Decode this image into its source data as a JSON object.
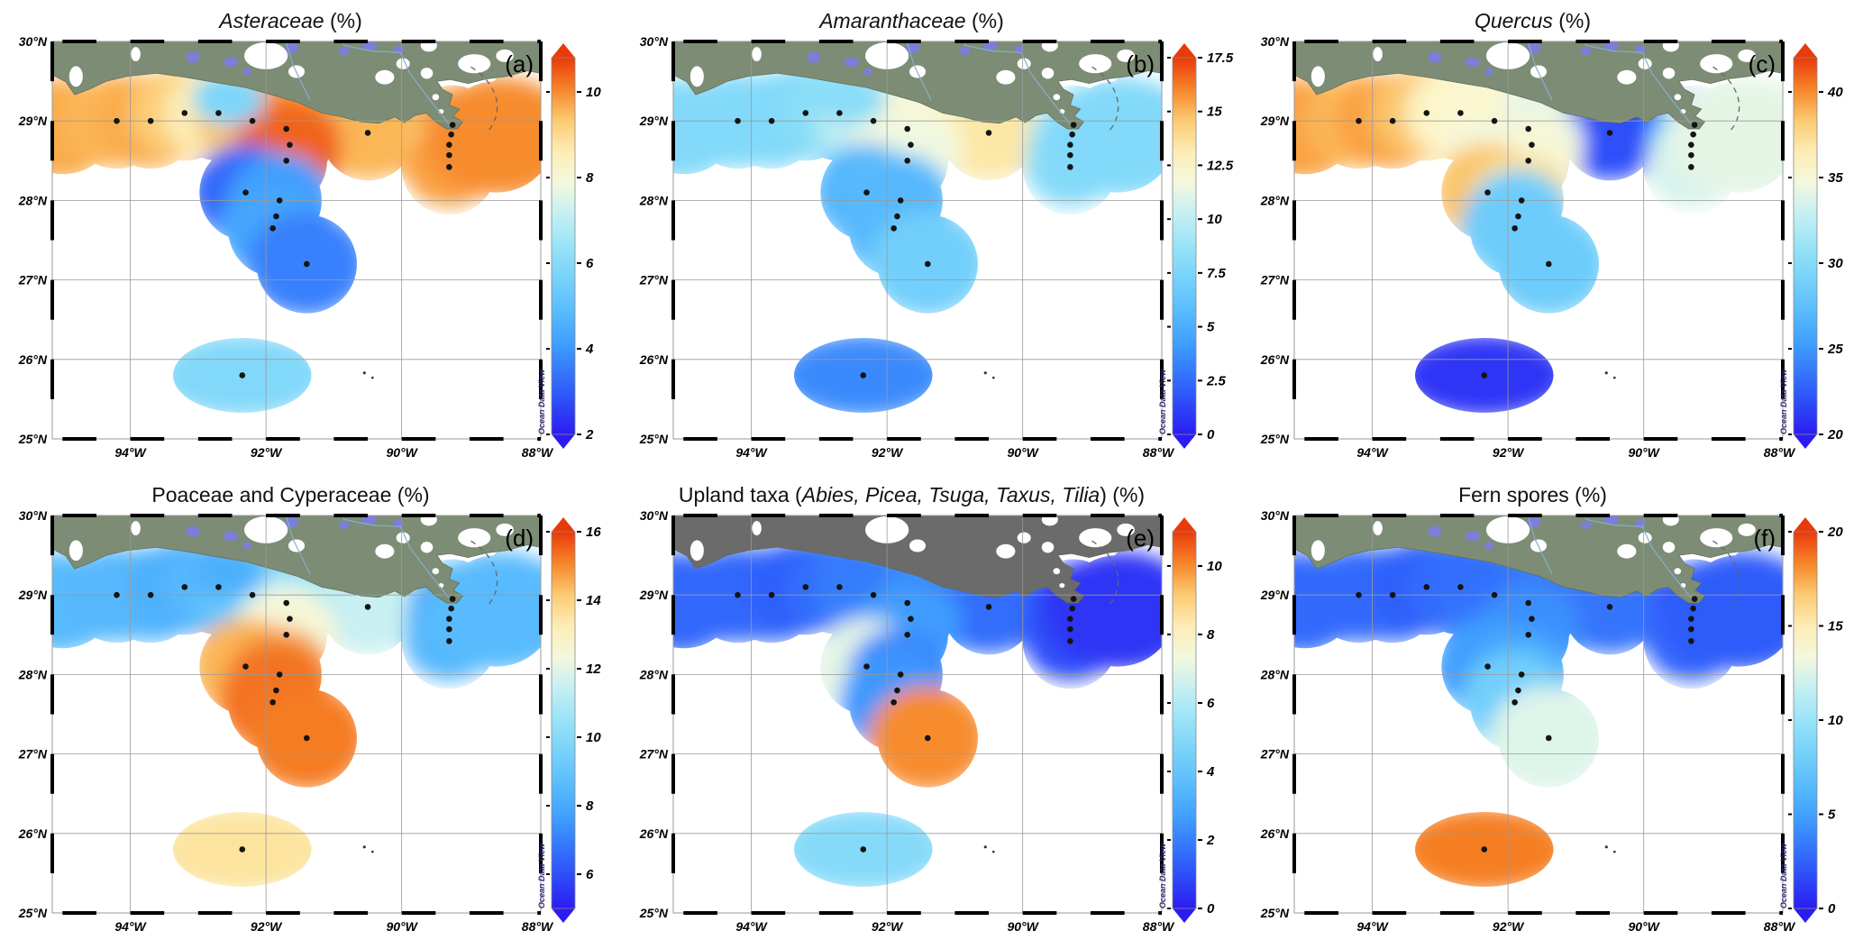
{
  "figure": {
    "watermark": "Ocean Data View",
    "background": "#ffffff"
  },
  "axes": {
    "lat_tick_labels": [
      "30°N",
      "29°N",
      "28°N",
      "27°N",
      "26°N",
      "25°N"
    ],
    "lat_tick_values": [
      30,
      29,
      28,
      27,
      26,
      25
    ],
    "lon_tick_labels": [
      "94°W",
      "92°W",
      "90°W",
      "88°W"
    ],
    "lon_tick_values": [
      -94,
      -92,
      -90,
      -88
    ],
    "lon_range": [
      -95.15,
      -87.95
    ],
    "lat_range": [
      25,
      30
    ]
  },
  "colors": {
    "land_green": "#7d8c74",
    "land_gray": "#6b6b6b",
    "lake": "#7b7fd8",
    "river": "#86aed0",
    "ocean": "#ffffff",
    "station_dot": "#141414",
    "grid": "#9a9a9a",
    "frame": "#000000",
    "colormap_stops": [
      [
        0.0,
        "#2b1cf2"
      ],
      [
        0.12,
        "#2f5ffb"
      ],
      [
        0.24,
        "#3f9ffe"
      ],
      [
        0.36,
        "#63c6fc"
      ],
      [
        0.48,
        "#8fe0f8"
      ],
      [
        0.58,
        "#c2eff4"
      ],
      [
        0.66,
        "#f2f8e0"
      ],
      [
        0.72,
        "#fdf6cb"
      ],
      [
        0.8,
        "#fcdf92"
      ],
      [
        0.86,
        "#fbb959"
      ],
      [
        0.92,
        "#f68226"
      ],
      [
        1.0,
        "#e93a0b"
      ]
    ]
  },
  "stations": [
    {
      "lon": -94.2,
      "lat": 29.0
    },
    {
      "lon": -93.7,
      "lat": 29.0
    },
    {
      "lon": -93.2,
      "lat": 29.1
    },
    {
      "lon": -92.7,
      "lat": 29.1
    },
    {
      "lon": -92.2,
      "lat": 29.0
    },
    {
      "lon": -91.7,
      "lat": 28.9
    },
    {
      "lon": -91.65,
      "lat": 28.7
    },
    {
      "lon": -91.7,
      "lat": 28.5
    },
    {
      "lon": -92.3,
      "lat": 28.1
    },
    {
      "lon": -91.8,
      "lat": 28.0
    },
    {
      "lon": -91.85,
      "lat": 27.8
    },
    {
      "lon": -91.9,
      "lat": 27.65
    },
    {
      "lon": -91.4,
      "lat": 27.2
    },
    {
      "lon": -92.35,
      "lat": 25.8
    },
    {
      "lon": -90.5,
      "lat": 28.85
    },
    {
      "lon": -89.25,
      "lat": 28.95
    },
    {
      "lon": -89.27,
      "lat": 28.83
    },
    {
      "lon": -89.3,
      "lat": 28.7
    },
    {
      "lon": -89.3,
      "lat": 28.57
    },
    {
      "lon": -89.3,
      "lat": 28.42
    }
  ],
  "support_nodes": {
    "west": {
      "lon": -95.05,
      "lat": 28.9
    },
    "dip": {
      "lon": -92.55,
      "lat": 29.28
    },
    "east": {
      "lon": -88.55,
      "lat": 28.8
    }
  },
  "panels": [
    {
      "id": "a",
      "label": "(a)",
      "land_theme": "green",
      "title_parts": [
        {
          "text": "Asteraceae",
          "italic": true
        },
        {
          "text": " (%)",
          "italic": false
        }
      ]
    },
    {
      "id": "b",
      "label": "(b)",
      "land_theme": "green",
      "title_parts": [
        {
          "text": "Amaranthaceae",
          "italic": true
        },
        {
          "text": " (%)",
          "italic": false
        }
      ]
    },
    {
      "id": "c",
      "label": "(c)",
      "land_theme": "green",
      "title_parts": [
        {
          "text": "Quercus",
          "italic": true
        },
        {
          "text": " (%)",
          "italic": false
        }
      ]
    },
    {
      "id": "d",
      "label": "(d)",
      "land_theme": "green",
      "title_parts": [
        {
          "text": "Poaceae and Cyperaceae (%)",
          "italic": false
        }
      ]
    },
    {
      "id": "e",
      "label": "(e)",
      "land_theme": "gray",
      "title_parts": [
        {
          "text": "Upland taxa (",
          "italic": false
        },
        {
          "text": "Abies, Picea, Tsuga, Taxus, Tilia",
          "italic": true
        },
        {
          "text": ") (%)",
          "italic": false
        }
      ]
    },
    {
      "id": "f",
      "label": "(f)",
      "land_theme": "green",
      "title_parts": [
        {
          "text": "Fern spores (%)",
          "italic": false
        }
      ]
    }
  ],
  "chart_data": [
    {
      "type": "heatmap",
      "panel": "(a)",
      "title": "Asteraceae (%)",
      "units": "%",
      "lon_range": [
        -95.15,
        -87.95
      ],
      "lat_range": [
        25,
        30
      ],
      "colorbar": {
        "lo": 2,
        "hi": 10.8,
        "ticks": [
          2,
          4,
          6,
          8,
          10
        ]
      },
      "values": [
        9.6,
        9.7,
        9.3,
        8.6,
        9.4,
        9.8,
        10.3,
        10.4,
        3.2,
        4.2,
        4.0,
        4.3,
        3.6,
        5.9,
        9.6,
        10.0,
        9.7,
        9.4,
        9.2,
        9.8
      ],
      "support_values": {
        "west": 9.7,
        "dip": 5.8,
        "east": 10.0
      }
    },
    {
      "type": "heatmap",
      "panel": "(b)",
      "title": "Amaranthaceae (%)",
      "units": "%",
      "lon_range": [
        -95.15,
        -87.95
      ],
      "lat_range": [
        25,
        30
      ],
      "colorbar": {
        "lo": 0,
        "hi": 17.5,
        "ticks": [
          0,
          2.5,
          5,
          7.5,
          10,
          12.5,
          15,
          17.5
        ]
      },
      "values": [
        7.8,
        7.8,
        7.8,
        8.2,
        10.2,
        11.5,
        12.3,
        11.5,
        5.5,
        6.0,
        5.2,
        5.6,
        7.0,
        3.5,
        13.5,
        10.0,
        9.6,
        9.2,
        8.4,
        8.0
      ],
      "support_values": {
        "west": 7.8,
        "dip": 8.2,
        "east": 7.8
      }
    },
    {
      "type": "heatmap",
      "panel": "(c)",
      "title": "Quercus (%)",
      "units": "%",
      "lon_range": [
        -95.15,
        -87.95
      ],
      "lat_range": [
        25,
        30
      ],
      "colorbar": {
        "lo": 20,
        "hi": 42,
        "ticks": [
          20,
          25,
          30,
          35,
          40
        ]
      },
      "values": [
        39,
        39.5,
        38.5,
        36,
        35,
        34.5,
        34,
        35,
        38.5,
        37.5,
        29,
        28.5,
        28.5,
        21,
        22,
        27,
        27.5,
        28,
        31,
        33.5
      ],
      "support_values": {
        "west": 39.5,
        "dip": 35.5,
        "east": 34
      }
    },
    {
      "type": "heatmap",
      "panel": "(d)",
      "title": "Poaceae and Cyperaceae (%)",
      "units": "%",
      "lon_range": [
        -95.15,
        -87.95
      ],
      "lat_range": [
        25,
        30
      ],
      "colorbar": {
        "lo": 5,
        "hi": 16,
        "ticks": [
          6,
          8,
          10,
          12,
          14,
          16
        ]
      },
      "values": [
        8.5,
        8.5,
        8.2,
        8.5,
        9.0,
        9.6,
        11.0,
        12.5,
        14.5,
        14.8,
        15.3,
        15.3,
        15.2,
        13.6,
        11.5,
        8.0,
        8.0,
        7.6,
        8.0,
        8.5
      ],
      "support_values": {
        "west": 8.6,
        "dip": 8.2,
        "east": 8.6
      }
    },
    {
      "type": "heatmap",
      "panel": "(e)",
      "title": "Upland taxa (Abies, Picea, Tsuga, Taxus, Tilia) (%)",
      "units": "%",
      "lon_range": [
        -95.15,
        -87.95
      ],
      "lat_range": [
        25,
        30
      ],
      "colorbar": {
        "lo": 0,
        "hi": 11,
        "ticks": [
          0,
          2,
          4,
          6,
          8,
          10
        ]
      },
      "values": [
        1.5,
        1.5,
        1.3,
        1.6,
        2.0,
        2.1,
        2.3,
        2.6,
        7.0,
        2.2,
        2.2,
        2.5,
        10.0,
        5.0,
        1.6,
        0.8,
        0.8,
        0.8,
        0.9,
        1.0
      ],
      "support_values": {
        "west": 1.5,
        "dip": 1.9,
        "east": 0.5
      }
    },
    {
      "type": "heatmap",
      "panel": "(f)",
      "title": "Fern spores (%)",
      "units": "%",
      "lon_range": [
        -95.15,
        -87.95
      ],
      "lat_range": [
        25,
        30
      ],
      "colorbar": {
        "lo": 0,
        "hi": 20,
        "ticks": [
          0,
          5,
          10,
          15,
          20
        ]
      },
      "values": [
        2.8,
        2.8,
        2.4,
        2.8,
        3.2,
        3.2,
        3.6,
        4.2,
        4.8,
        5.2,
        6.0,
        8.0,
        12.5,
        18.5,
        3.2,
        2.0,
        2.0,
        2.2,
        2.5,
        2.6
      ],
      "support_values": {
        "west": 2.8,
        "dip": 3.0,
        "east": 2.3
      }
    }
  ]
}
